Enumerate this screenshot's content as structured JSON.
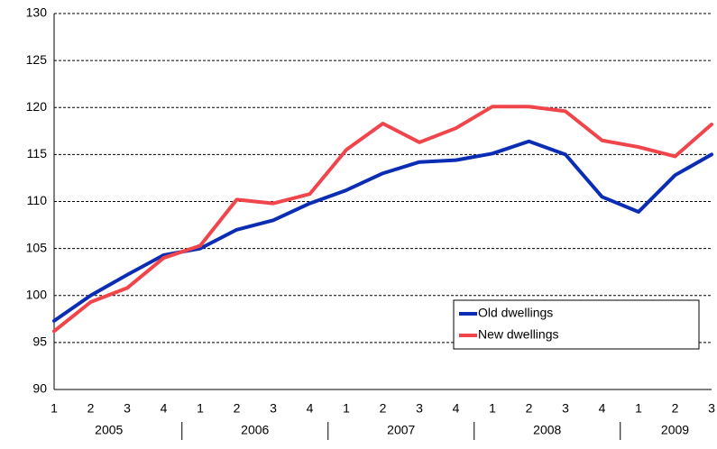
{
  "chart_data": {
    "type": "line",
    "categories": [
      "1",
      "2",
      "3",
      "4",
      "1",
      "2",
      "3",
      "4",
      "1",
      "2",
      "3",
      "4",
      "1",
      "2",
      "3",
      "4",
      "1",
      "2",
      "3"
    ],
    "years": [
      "2005",
      "2006",
      "2007",
      "2008",
      "2009"
    ],
    "series": [
      {
        "name": "Old dwellings",
        "color": "#0a2db4",
        "values": [
          97.3,
          100.0,
          102.2,
          104.3,
          105.0,
          107.0,
          108.0,
          109.8,
          111.2,
          113.0,
          114.2,
          114.4,
          115.1,
          116.4,
          115.0,
          110.5,
          108.9,
          112.8,
          115.0
        ]
      },
      {
        "name": "New dwellings",
        "color": "#f0464b",
        "values": [
          96.2,
          99.3,
          100.8,
          104.0,
          105.3,
          110.2,
          109.8,
          110.8,
          115.5,
          118.3,
          116.3,
          117.8,
          120.1,
          120.1,
          119.6,
          116.5,
          115.8,
          114.8,
          118.2
        ]
      }
    ],
    "ylim": [
      90,
      130
    ],
    "yticks": [
      90,
      95,
      100,
      105,
      110,
      115,
      120,
      125,
      130
    ],
    "grid": true,
    "legend": "lower right"
  }
}
